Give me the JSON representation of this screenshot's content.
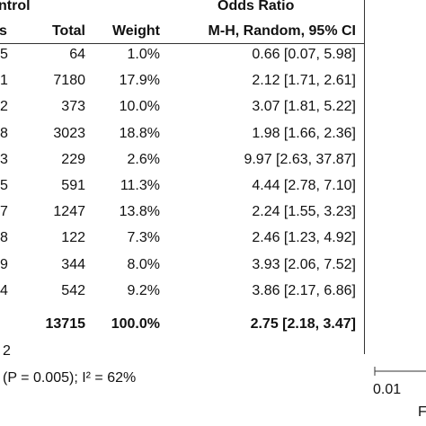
{
  "header": {
    "group_label": "ntrol",
    "odds_ratio_title": "Odds Ratio",
    "col_events": "s",
    "col_total": "Total",
    "col_weight": "Weight",
    "col_method": "M-H, Random, 95% CI"
  },
  "chart_data": {
    "type": "table",
    "rows": [
      {
        "events": "5",
        "total": "64",
        "weight": "1.0%",
        "or_ci": "0.66 [0.07, 5.98]"
      },
      {
        "events": "1",
        "total": "7180",
        "weight": "17.9%",
        "or_ci": "2.12 [1.71, 2.61]"
      },
      {
        "events": "2",
        "total": "373",
        "weight": "10.0%",
        "or_ci": "3.07 [1.81, 5.22]"
      },
      {
        "events": "8",
        "total": "3023",
        "weight": "18.8%",
        "or_ci": "1.98 [1.66, 2.36]"
      },
      {
        "events": "3",
        "total": "229",
        "weight": "2.6%",
        "or_ci": "9.97 [2.63, 37.87]"
      },
      {
        "events": "5",
        "total": "591",
        "weight": "11.3%",
        "or_ci": "4.44 [2.78, 7.10]"
      },
      {
        "events": "7",
        "total": "1247",
        "weight": "13.8%",
        "or_ci": "2.24 [1.55, 3.23]"
      },
      {
        "events": "8",
        "total": "122",
        "weight": "7.3%",
        "or_ci": "2.46 [1.23, 4.92]"
      },
      {
        "events": "9",
        "total": "344",
        "weight": "8.0%",
        "or_ci": "3.93 [2.06, 7.52]"
      },
      {
        "events": "4",
        "total": "542",
        "weight": "9.2%",
        "or_ci": "3.86 [2.17, 6.86]"
      }
    ],
    "total_row": {
      "total": "13715",
      "weight": "100.0%",
      "or_ci": "2.75 [2.18, 3.47]"
    }
  },
  "footer": {
    "events_fragment": "2",
    "heterogeneity": "(P = 0.005); I² = 62%"
  },
  "axis": {
    "tick_label": "0.01",
    "side_label_fragment": "F"
  }
}
